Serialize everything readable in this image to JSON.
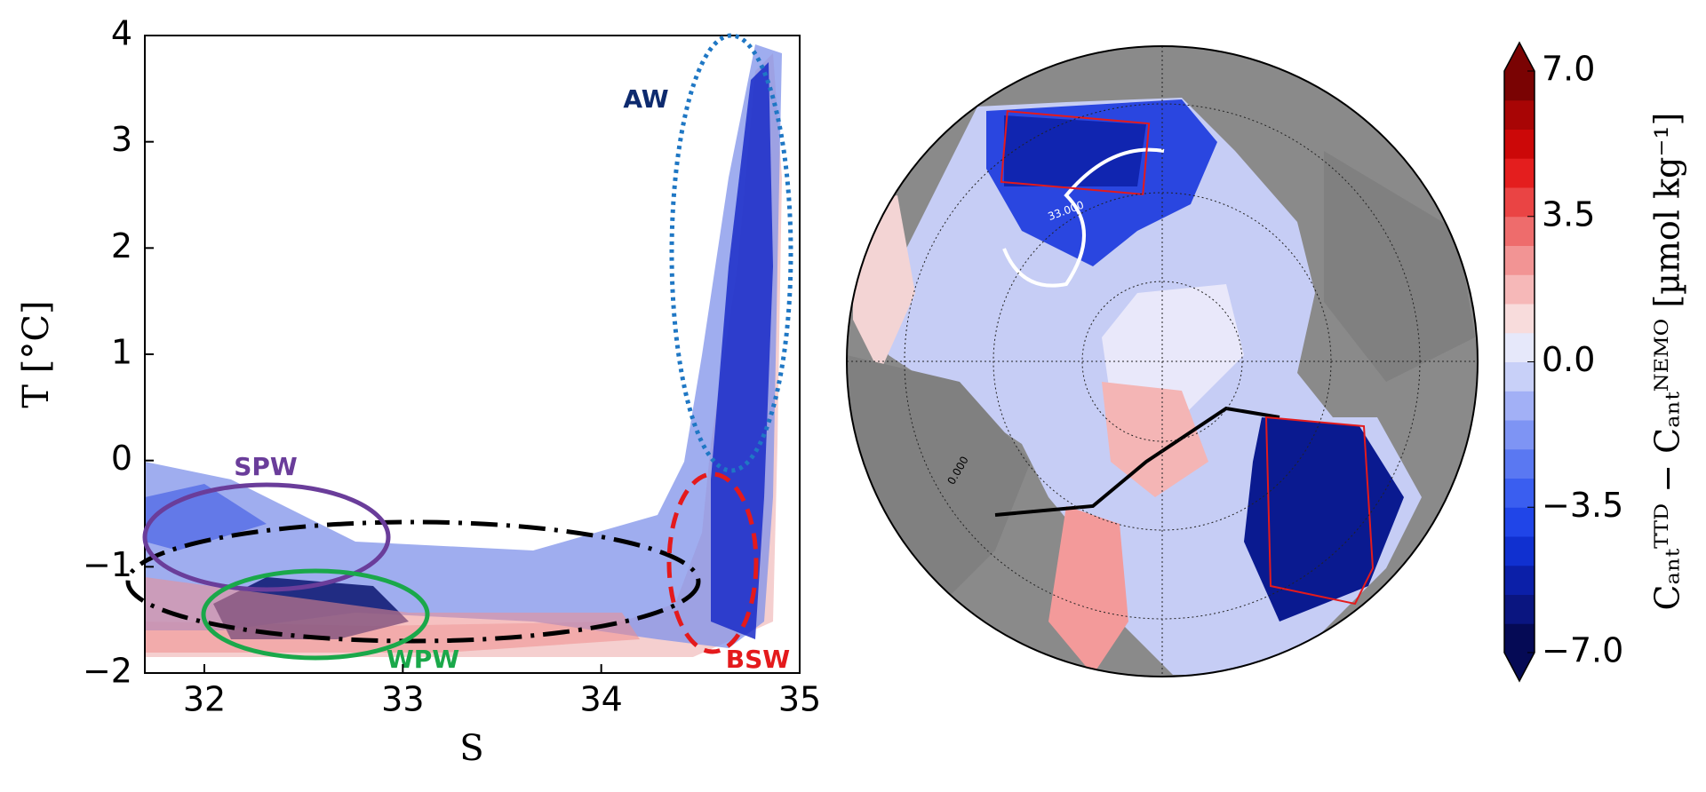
{
  "chart_data": [
    {
      "type": "scatter",
      "x_label": "S",
      "y_label": "T [°C]",
      "xlim": [
        31.7,
        35
      ],
      "ylim": [
        -2,
        4
      ],
      "xticks": [
        32,
        33,
        34,
        35
      ],
      "yticks": [
        {
          "value": -2,
          "label": "−2"
        },
        {
          "value": -1,
          "label": "−1"
        },
        0,
        1,
        2,
        3,
        4
      ],
      "annotations": [
        "AW",
        "SPW",
        "WPW",
        "BSW"
      ]
    },
    {
      "type": "map",
      "colorbar_label": "Cₐₙₜᵀᵀᴰ − Cₐₙₜᴺᴱᴹᴼ [µmol kg⁻¹]",
      "clim": [
        -7,
        7
      ],
      "cticks": [
        {
          "value": 7,
          "label": "7.0"
        },
        {
          "value": 3.5,
          "label": "3.5"
        },
        {
          "value": 0,
          "label": "0.0"
        },
        {
          "value": -3.5,
          "label": "−3.5"
        },
        {
          "value": -7,
          "label": "−7.0"
        }
      ],
      "colors": [
        "#050a55",
        "#0a1580",
        "#0b1fa8",
        "#1030d0",
        "#2045e8",
        "#3a5ef0",
        "#5a78f2",
        "#7e94f4",
        "#a2b0f6",
        "#c8d0f8",
        "#e6e8fa",
        "#f8dcdc",
        "#f6b8b8",
        "#f29494",
        "#ee6c6c",
        "#ea4444",
        "#e41e1e",
        "#cc0808",
        "#a80505",
        "#7a0303"
      ],
      "contour_labels": [
        "33.000",
        "0.000"
      ]
    }
  ]
}
